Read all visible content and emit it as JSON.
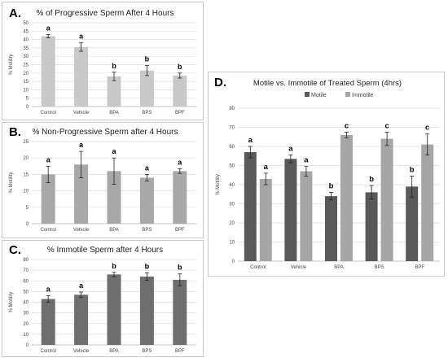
{
  "chart_data": [
    {
      "panel_letter": "A.",
      "type": "bar",
      "title": "% of Progressive Sperm After 4 Hours",
      "ylabel": "% Motility",
      "categories": [
        "Control",
        "Vehicle",
        "BPA",
        "BPS",
        "BPF"
      ],
      "ylim": [
        0,
        50
      ],
      "yticks": [
        0,
        5,
        10,
        15,
        20,
        25,
        30,
        35,
        40,
        45,
        50
      ],
      "grid": true,
      "series": [
        {
          "values": [
            42,
            35.5,
            18,
            21.5,
            18.5
          ],
          "errors": [
            1,
            2.5,
            2.5,
            3,
            1.5
          ],
          "color": "#c8c8c8"
        }
      ],
      "significance_labels": [
        "a",
        "a",
        "b",
        "b",
        "b"
      ]
    },
    {
      "panel_letter": "B.",
      "type": "bar",
      "title": "% Non-Progressive Sperm after 4 Hours",
      "ylabel": "% Motility",
      "categories": [
        "Control",
        "Vehicle",
        "BPA",
        "BPS",
        "BPF"
      ],
      "ylim": [
        0,
        25
      ],
      "yticks": [
        0,
        5,
        10,
        15,
        20,
        25
      ],
      "grid": true,
      "series": [
        {
          "values": [
            15,
            18,
            16,
            14,
            16
          ],
          "errors": [
            2.5,
            4,
            4,
            1,
            0.7
          ],
          "color": "#a8a8a8"
        }
      ],
      "significance_labels": [
        "a",
        "a",
        "a",
        "a",
        "a"
      ]
    },
    {
      "panel_letter": "C.",
      "type": "bar",
      "title": "% Immotile Sperm after 4 Hours",
      "ylabel": "% Motility",
      "categories": [
        "Control",
        "Vehicle",
        "BPA",
        "BPS",
        "BPF"
      ],
      "ylim": [
        0,
        80
      ],
      "yticks": [
        0,
        10,
        20,
        30,
        40,
        50,
        60,
        70,
        80
      ],
      "grid": true,
      "series": [
        {
          "values": [
            43,
            47,
            66,
            64,
            61
          ],
          "errors": [
            3,
            2.5,
            2,
            3.5,
            5.5
          ],
          "color": "#6e6e6e"
        }
      ],
      "significance_labels": [
        "a",
        "a",
        "b",
        "b",
        "b"
      ]
    },
    {
      "panel_letter": "D.",
      "type": "bar",
      "title": "Motile vs. Immotile of Treated Sperm (4hrs)",
      "ylabel": "% Motility",
      "categories": [
        "Control",
        "Vehicle",
        "BPA",
        "BPS",
        "BPF"
      ],
      "ylim": [
        0,
        80
      ],
      "yticks": [
        0,
        10,
        20,
        30,
        40,
        50,
        60,
        70,
        80
      ],
      "grid": true,
      "legend_position": "top-center",
      "series": [
        {
          "name": "Motile",
          "values": [
            57,
            53.5,
            34,
            36,
            39
          ],
          "errors": [
            3,
            2,
            2,
            3.5,
            5.5
          ],
          "color": "#595959",
          "significance_labels": [
            "a",
            "a",
            "b",
            "b",
            "b"
          ]
        },
        {
          "name": "Immotile",
          "values": [
            43,
            47,
            66,
            64,
            61
          ],
          "errors": [
            3,
            2.5,
            1.5,
            3.5,
            5.5
          ],
          "color": "#a6a6a6",
          "significance_labels": [
            "a",
            "a",
            "c",
            "c",
            "c"
          ]
        }
      ]
    }
  ]
}
